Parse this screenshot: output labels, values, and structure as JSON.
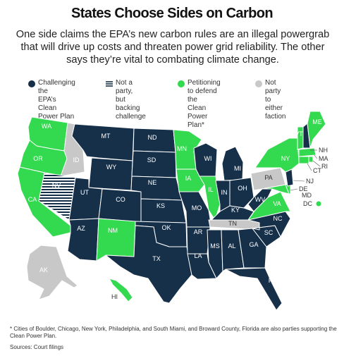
{
  "title": "States Choose Sides on Carbon",
  "subtitle": "One side claims the EPA’s new carbon rules are an illegal powergrab that will drive up costs and threaten power grid reliability. The other says they’re vital to combating climate change.",
  "colors": {
    "challenging": "#16304a",
    "backing": "#16304a",
    "petitioning": "#33d94e",
    "neutral": "#c8c8c8"
  },
  "legend": [
    {
      "key": "challenging",
      "label_lines": [
        "Challenging the",
        "EPA’s Clean",
        "Power Plan"
      ]
    },
    {
      "key": "backing",
      "label_lines": [
        "Not a party,",
        "but backing",
        "challenge"
      ]
    },
    {
      "key": "petitioning",
      "label_lines": [
        "Petitioning",
        "to defend the",
        "Clean Power Plan*"
      ]
    },
    {
      "key": "neutral",
      "label_lines": [
        "Not party to",
        "either faction"
      ]
    }
  ],
  "states": {
    "WA": "petitioning",
    "OR": "petitioning",
    "CA": "petitioning",
    "NV": "backing",
    "ID": "neutral",
    "MT": "challenging",
    "WY": "challenging",
    "UT": "challenging",
    "AZ": "challenging",
    "CO": "challenging",
    "NM": "petitioning",
    "ND": "challenging",
    "SD": "challenging",
    "NE": "challenging",
    "KS": "challenging",
    "OK": "challenging",
    "TX": "challenging",
    "MN": "petitioning",
    "IA": "petitioning",
    "MO": "challenging",
    "AR": "challenging",
    "LA": "challenging",
    "WI": "challenging",
    "IL": "petitioning",
    "MI": "challenging",
    "IN": "challenging",
    "OH": "challenging",
    "KY": "challenging",
    "TN": "neutral",
    "MS": "challenging",
    "AL": "challenging",
    "GA": "challenging",
    "FL": "challenging",
    "SC": "challenging",
    "NC": "challenging",
    "VA": "petitioning",
    "WV": "challenging",
    "PA": "neutral",
    "NY": "petitioning",
    "VT": "petitioning",
    "ME": "petitioning",
    "NH": "challenging",
    "MA": "petitioning",
    "RI": "petitioning",
    "CT": "petitioning",
    "NJ": "challenging",
    "DE": "petitioning",
    "MD": "petitioning",
    "DC": "petitioning",
    "AK": "neutral",
    "HI": "petitioning"
  },
  "footnote": "* Cities of Boulder, Chicago, New York, Philadelphia, and South Miami, and Broward County, Florida are also parties supporting the Clean Power Plan.",
  "sources": "Sources: Court filings"
}
